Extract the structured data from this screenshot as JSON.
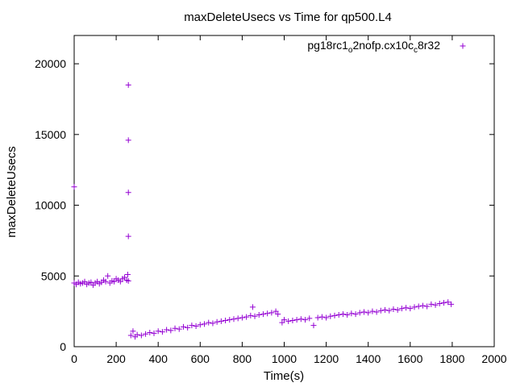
{
  "chart_data": {
    "type": "scatter",
    "title": "maxDeleteUsecs vs Time for qp500.L4",
    "xlabel": "Time(s)",
    "ylabel": "maxDeleteUsecs",
    "xlim": [
      0,
      2000
    ],
    "ylim": [
      0,
      22000
    ],
    "xticks": [
      0,
      200,
      400,
      600,
      800,
      1000,
      1200,
      1400,
      1600,
      1800,
      2000
    ],
    "xtick_labels": [
      "0",
      "200",
      "400",
      "600",
      "800",
      "1000",
      "1200",
      "1400",
      "1600",
      "1800",
      "2000"
    ],
    "yticks": [
      0,
      5000,
      10000,
      15000,
      20000
    ],
    "ytick_labels": [
      "0",
      "5000",
      "10000",
      "15000",
      "20000"
    ],
    "grid": false,
    "legend_position": "top-right",
    "marker": "+",
    "series": [
      {
        "name": "pg18rc1_o2nofp.cx10c_c8r32",
        "name_parts": {
          "a": "pg18rc1",
          "b": "o",
          "c": "2nofp.cx10c",
          "d": "c",
          "e": "8r32"
        },
        "color": "#9400d3",
        "points": [
          [
            0,
            11300
          ],
          [
            0,
            4500
          ],
          [
            10,
            4400
          ],
          [
            20,
            4550
          ],
          [
            30,
            4450
          ],
          [
            40,
            4500
          ],
          [
            50,
            4600
          ],
          [
            60,
            4400
          ],
          [
            70,
            4500
          ],
          [
            80,
            4550
          ],
          [
            90,
            4350
          ],
          [
            100,
            4500
          ],
          [
            110,
            4600
          ],
          [
            120,
            4450
          ],
          [
            130,
            4550
          ],
          [
            140,
            4700
          ],
          [
            150,
            4600
          ],
          [
            160,
            5000
          ],
          [
            170,
            4500
          ],
          [
            180,
            4650
          ],
          [
            190,
            4600
          ],
          [
            200,
            4800
          ],
          [
            210,
            4700
          ],
          [
            220,
            4600
          ],
          [
            230,
            4800
          ],
          [
            240,
            4900
          ],
          [
            250,
            4700
          ],
          [
            255,
            5100
          ],
          [
            258,
            4650
          ],
          [
            258,
            18500
          ],
          [
            258,
            14600
          ],
          [
            258,
            10900
          ],
          [
            258,
            7800
          ],
          [
            270,
            800
          ],
          [
            280,
            1100
          ],
          [
            290,
            700
          ],
          [
            300,
            850
          ],
          [
            320,
            800
          ],
          [
            340,
            900
          ],
          [
            360,
            1000
          ],
          [
            380,
            950
          ],
          [
            400,
            1100
          ],
          [
            420,
            1050
          ],
          [
            440,
            1200
          ],
          [
            460,
            1150
          ],
          [
            480,
            1300
          ],
          [
            500,
            1250
          ],
          [
            520,
            1400
          ],
          [
            540,
            1350
          ],
          [
            560,
            1500
          ],
          [
            580,
            1450
          ],
          [
            600,
            1550
          ],
          [
            620,
            1600
          ],
          [
            640,
            1700
          ],
          [
            660,
            1650
          ],
          [
            680,
            1750
          ],
          [
            700,
            1800
          ],
          [
            720,
            1850
          ],
          [
            740,
            1900
          ],
          [
            760,
            1950
          ],
          [
            780,
            2000
          ],
          [
            800,
            2050
          ],
          [
            820,
            2100
          ],
          [
            840,
            2200
          ],
          [
            850,
            2800
          ],
          [
            860,
            2150
          ],
          [
            880,
            2250
          ],
          [
            900,
            2300
          ],
          [
            920,
            2350
          ],
          [
            940,
            2400
          ],
          [
            960,
            2500
          ],
          [
            970,
            2300
          ],
          [
            990,
            1700
          ],
          [
            1000,
            1900
          ],
          [
            1020,
            1800
          ],
          [
            1040,
            1850
          ],
          [
            1060,
            1900
          ],
          [
            1080,
            1950
          ],
          [
            1100,
            1900
          ],
          [
            1120,
            2000
          ],
          [
            1140,
            1500
          ],
          [
            1160,
            2050
          ],
          [
            1180,
            2100
          ],
          [
            1200,
            2050
          ],
          [
            1220,
            2150
          ],
          [
            1240,
            2200
          ],
          [
            1260,
            2250
          ],
          [
            1280,
            2300
          ],
          [
            1300,
            2250
          ],
          [
            1320,
            2350
          ],
          [
            1340,
            2300
          ],
          [
            1360,
            2400
          ],
          [
            1380,
            2450
          ],
          [
            1400,
            2400
          ],
          [
            1420,
            2500
          ],
          [
            1440,
            2450
          ],
          [
            1460,
            2550
          ],
          [
            1480,
            2600
          ],
          [
            1500,
            2550
          ],
          [
            1520,
            2650
          ],
          [
            1540,
            2600
          ],
          [
            1560,
            2700
          ],
          [
            1580,
            2750
          ],
          [
            1600,
            2700
          ],
          [
            1620,
            2800
          ],
          [
            1640,
            2850
          ],
          [
            1660,
            2900
          ],
          [
            1680,
            2850
          ],
          [
            1700,
            3000
          ],
          [
            1720,
            2950
          ],
          [
            1740,
            3050
          ],
          [
            1760,
            3100
          ],
          [
            1780,
            3150
          ],
          [
            1795,
            3000
          ]
        ]
      }
    ]
  }
}
